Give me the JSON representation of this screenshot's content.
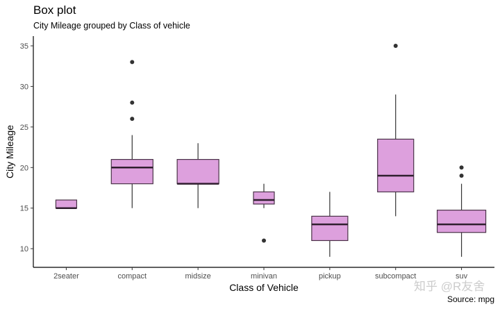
{
  "chart_data": {
    "type": "boxplot",
    "title": "Box plot",
    "subtitle": "City Mileage grouped by Class of vehicle",
    "caption": "Source: mpg",
    "xlabel": "Class of Vehicle",
    "ylabel": "City Mileage",
    "ylim": [
      7.7,
      36.2
    ],
    "yticks": [
      10,
      15,
      20,
      25,
      30,
      35
    ],
    "grid": false,
    "fill_color": "#dda0dd",
    "categories": [
      "2seater",
      "compact",
      "midsize",
      "minivan",
      "pickup",
      "subcompact",
      "suv"
    ],
    "boxes": [
      {
        "min": 15,
        "q1": 15,
        "median": 15,
        "q3": 16,
        "max": 16,
        "outliers": []
      },
      {
        "min": 15,
        "q1": 18,
        "median": 20,
        "q3": 21,
        "max": 24,
        "outliers": [
          26,
          28,
          33
        ]
      },
      {
        "min": 15,
        "q1": 18,
        "median": 18,
        "q3": 21,
        "max": 23,
        "outliers": []
      },
      {
        "min": 15,
        "q1": 15.5,
        "median": 16,
        "q3": 17,
        "max": 18,
        "outliers": [
          11
        ]
      },
      {
        "min": 9,
        "q1": 11,
        "median": 13,
        "q3": 14,
        "max": 17,
        "outliers": []
      },
      {
        "min": 14,
        "q1": 17,
        "median": 19,
        "q3": 23.5,
        "max": 29,
        "outliers": [
          35
        ]
      },
      {
        "min": 9,
        "q1": 12,
        "median": 13,
        "q3": 14.75,
        "max": 18,
        "outliers": [
          19,
          20
        ]
      }
    ]
  },
  "watermark": "知乎 @R友舍"
}
